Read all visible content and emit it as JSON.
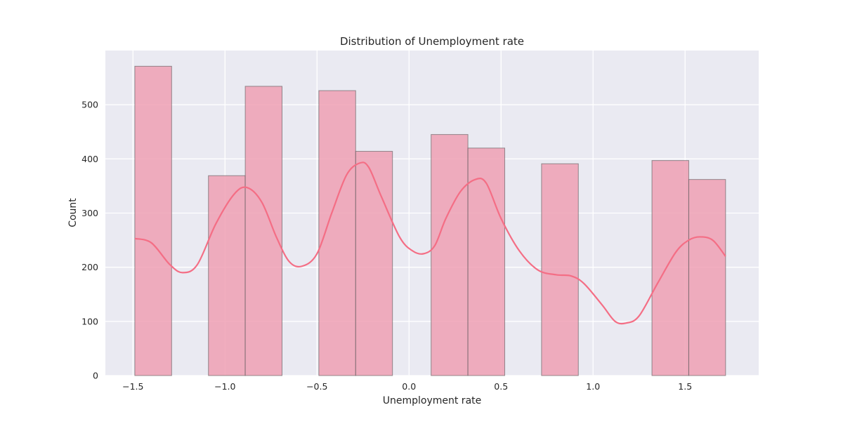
{
  "chart_data": {
    "type": "bar",
    "title": "Distribution of Unemployment rate",
    "xlabel": "Unemployment rate",
    "ylabel": "Count",
    "xlim": [
      -1.65,
      1.9
    ],
    "ylim": [
      0,
      600
    ],
    "xticks": [
      -1.5,
      -1.0,
      -0.5,
      0.0,
      0.5,
      1.0,
      1.5
    ],
    "xtick_labels": [
      "−1.5",
      "−1.0",
      "−0.5",
      "0.0",
      "0.5",
      "1.0",
      "1.5"
    ],
    "yticks": [
      0,
      100,
      200,
      300,
      400,
      500
    ],
    "ytick_labels": [
      "0",
      "100",
      "200",
      "300",
      "400",
      "500"
    ],
    "grid": true,
    "bins": [
      {
        "x0": -1.49,
        "x1": -1.29,
        "count": 571
      },
      {
        "x0": -1.29,
        "x1": -1.09,
        "count": 0
      },
      {
        "x0": -1.09,
        "x1": -0.89,
        "count": 369
      },
      {
        "x0": -0.89,
        "x1": -0.69,
        "count": 534
      },
      {
        "x0": -0.69,
        "x1": -0.49,
        "count": 0
      },
      {
        "x0": -0.49,
        "x1": -0.29,
        "count": 526
      },
      {
        "x0": -0.29,
        "x1": -0.09,
        "count": 414
      },
      {
        "x0": -0.09,
        "x1": 0.12,
        "count": 0
      },
      {
        "x0": 0.12,
        "x1": 0.32,
        "count": 445
      },
      {
        "x0": 0.32,
        "x1": 0.52,
        "count": 420
      },
      {
        "x0": 0.52,
        "x1": 0.72,
        "count": 0
      },
      {
        "x0": 0.72,
        "x1": 0.92,
        "count": 391
      },
      {
        "x0": 0.92,
        "x1": 1.12,
        "count": 0
      },
      {
        "x0": 1.12,
        "x1": 1.32,
        "count": 0
      },
      {
        "x0": 1.32,
        "x1": 1.52,
        "count": 397
      },
      {
        "x0": 1.52,
        "x1": 1.72,
        "count": 362
      }
    ],
    "kde": {
      "x": [
        -1.49,
        -1.4,
        -1.3,
        -1.23,
        -1.15,
        -1.05,
        -0.95,
        -0.88,
        -0.8,
        -0.72,
        -0.65,
        -0.58,
        -0.5,
        -0.42,
        -0.34,
        -0.27,
        -0.22,
        -0.15,
        -0.05,
        0.02,
        0.08,
        0.14,
        0.2,
        0.28,
        0.36,
        0.42,
        0.5,
        0.6,
        0.7,
        0.8,
        0.88,
        0.95,
        1.05,
        1.12,
        1.18,
        1.25,
        1.35,
        1.45,
        1.52,
        1.58,
        1.65,
        1.72
      ],
      "y": [
        253,
        245,
        205,
        190,
        205,
        280,
        335,
        347,
        320,
        255,
        210,
        202,
        225,
        300,
        370,
        392,
        385,
        330,
        255,
        230,
        225,
        240,
        290,
        340,
        362,
        355,
        290,
        230,
        195,
        186,
        184,
        170,
        130,
        100,
        97,
        110,
        170,
        228,
        250,
        256,
        250,
        220
      ]
    },
    "colors": {
      "bar_fill": "#eea0b4",
      "bar_edge": "#555555",
      "kde_line": "#f46e85",
      "plot_bg": "#eaeaf2",
      "grid": "#ffffff"
    }
  }
}
